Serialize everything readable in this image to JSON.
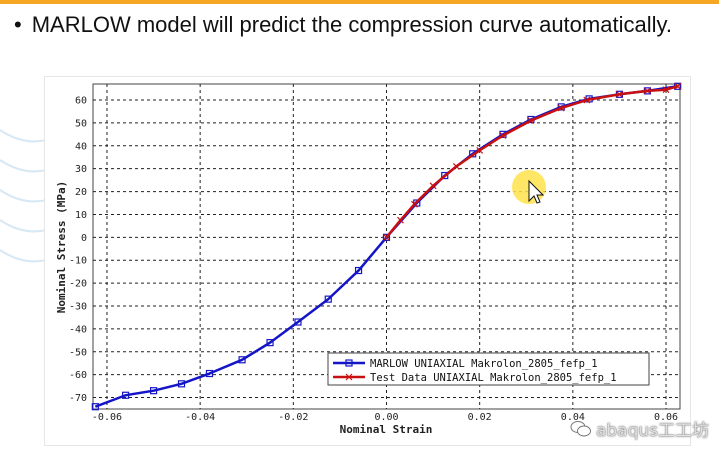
{
  "slide": {
    "bullet": "•",
    "title": "MARLOW model will predict the compression curve automatically."
  },
  "colors": {
    "accent_orange": "#f5a623",
    "marlow_series": "#1515c8",
    "test_series": "#c81010",
    "cursor_highlight": "#ffe24a"
  },
  "watermark": {
    "text": "abaqus工工坊",
    "icon": "wechat-icon"
  },
  "chart_data": {
    "type": "line",
    "xlabel": "Nominal Strain",
    "ylabel": "Nominal Stress (MPa)",
    "xlim": [
      -0.063,
      0.063
    ],
    "ylim": [
      -75,
      67
    ],
    "grid": true,
    "legend_placement": "bottom-right",
    "x_ticks": [
      -0.06,
      -0.04,
      -0.02,
      0.0,
      0.02,
      0.04,
      0.06
    ],
    "x_tick_labels": [
      "-0.06",
      "-0.04",
      "-0.02",
      "0.00",
      "0.02",
      "0.04",
      "0.06"
    ],
    "y_ticks": [
      60,
      50,
      40,
      30,
      20,
      10,
      0,
      -10,
      -20,
      -30,
      -40,
      -50,
      -60,
      -70
    ],
    "y_tick_labels": [
      "60",
      "50",
      "40",
      "30",
      "20",
      "10",
      "0",
      "-10",
      "-20",
      "-30",
      "-40",
      "-50",
      "-60",
      "-70"
    ],
    "series": [
      {
        "name": "MARLOW UNIAXIAL Makrolon_2805_fefp_1",
        "color": "#1515c8",
        "marker": "square",
        "x": [
          -0.0625,
          -0.056,
          -0.05,
          -0.044,
          -0.038,
          -0.031,
          -0.025,
          -0.019,
          -0.0125,
          -0.006,
          0.0,
          0.0065,
          0.0125,
          0.0185,
          0.025,
          0.031,
          0.0375,
          0.0435,
          0.05,
          0.056,
          0.0625
        ],
        "y": [
          -74,
          -69,
          -67,
          -64,
          -59.5,
          -53.5,
          -46,
          -37,
          -27,
          -14.5,
          0,
          15,
          27,
          36.5,
          45,
          51.5,
          57,
          60.5,
          62.5,
          64,
          66
        ]
      },
      {
        "name": "Test Data UNIAXIAL Makrolon_2805_fefp_1",
        "color": "#c81010",
        "marker": "x",
        "x": [
          0.0,
          0.003,
          0.006,
          0.01,
          0.015,
          0.02,
          0.025,
          0.031,
          0.0375,
          0.043,
          0.05,
          0.056,
          0.06,
          0.0625
        ],
        "y": [
          0,
          7.5,
          14.5,
          22.5,
          31,
          38,
          44.5,
          51,
          56.5,
          60,
          62.5,
          64,
          64.5,
          66
        ]
      }
    ]
  }
}
